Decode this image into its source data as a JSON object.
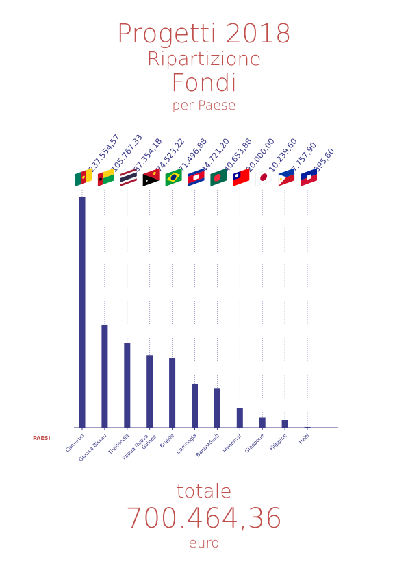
{
  "header": {
    "line1": "Progetti 2018",
    "line2": "Ripartizione",
    "line3": "Fondi",
    "line4": "per Paese"
  },
  "axis_label": "PAESI",
  "colors": {
    "title": "#c0504d",
    "bars": "#3b3b8a",
    "value_labels": "#3b3b8a",
    "axis_label": "#c0504d"
  },
  "chart_data": {
    "type": "bar",
    "categories": [
      "Camerun",
      "Guinea Bissau",
      "Thailandia",
      "Papua Nuova Guinea",
      "Brasile",
      "Cambogia",
      "Bangladesh",
      "Myanmar",
      "Giappone",
      "Filippine",
      "Haiti"
    ],
    "values": [
      237554.57,
      105767.33,
      87354.18,
      74523.22,
      71496.88,
      44721.2,
      40653.88,
      20000.0,
      10239.6,
      7757.9,
      395.6
    ],
    "value_labels": [
      "237.554,57",
      "105.767,33",
      "87.354,18",
      "74.523,22",
      "71.496,88",
      "44.721,20",
      "40.653,88",
      "20.000,00",
      "10.239,60",
      "7.757,90",
      "395,60"
    ],
    "flag_icons": [
      "cameroon-flag-icon",
      "guinea-bissau-flag-icon",
      "thailand-flag-icon",
      "papua-new-guinea-flag-icon",
      "brazil-flag-icon",
      "cambodia-flag-icon",
      "bangladesh-flag-icon",
      "myanmar-flag-icon",
      "japan-flag-icon",
      "philippines-flag-icon",
      "haiti-flag-icon"
    ],
    "xlabel": "PAESI",
    "ylabel": "",
    "ylim": [
      0,
      237554.57
    ],
    "grid": false
  },
  "total": {
    "label": "totale",
    "value": "700.464,36",
    "unit": "euro"
  }
}
